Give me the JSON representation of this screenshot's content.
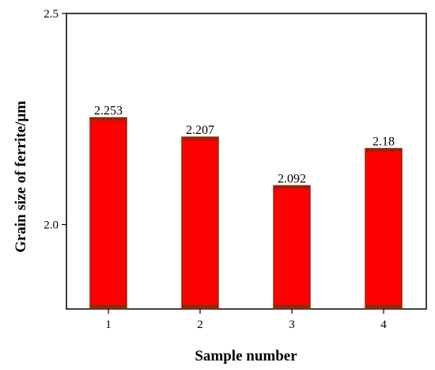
{
  "chart_data": {
    "type": "bar",
    "categories": [
      "1",
      "2",
      "3",
      "4"
    ],
    "values": [
      2.253,
      2.207,
      2.092,
      2.18
    ],
    "data_labels": [
      "2.253",
      "2.207",
      "2.092",
      "2.18"
    ],
    "xlabel": "Sample number",
    "ylabel": "Grain size of ferrite/μm",
    "ylim": [
      1.8,
      2.5
    ],
    "yticks": [
      2.0,
      2.5
    ],
    "ytick_labels": [
      "2.0",
      "2.5"
    ],
    "grid": false,
    "bar_color": "#ff0000",
    "bar_edge_color": "#8b2a0e"
  }
}
